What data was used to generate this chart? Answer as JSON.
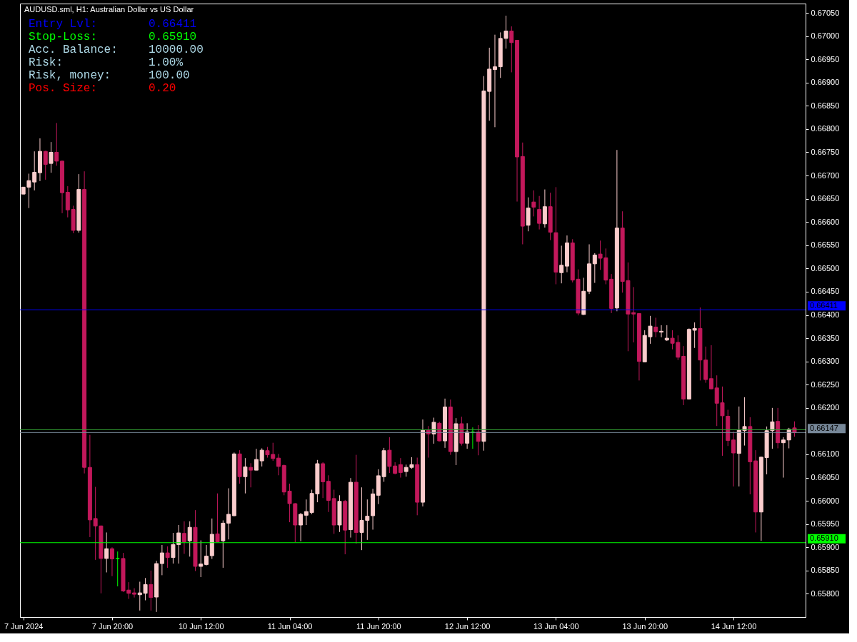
{
  "chart_data": {
    "type": "candlestick",
    "title": "AUDUSD.sml, H1:  Australian Dollar vs US Dollar",
    "categories": [
      "7 Jun 2024",
      null,
      null,
      null,
      null,
      null,
      null,
      null,
      null,
      null,
      null,
      null,
      null,
      null,
      null,
      null,
      "7 Jun 20:00",
      null,
      null,
      null,
      null,
      null,
      null,
      null,
      null,
      null,
      null,
      null,
      null,
      null,
      null,
      null,
      "10 Jun 12:00",
      null,
      null,
      null,
      null,
      null,
      null,
      null,
      null,
      null,
      null,
      null,
      null,
      null,
      null,
      null,
      "11 Jun 04:00",
      null,
      null,
      null,
      null,
      null,
      null,
      null,
      null,
      null,
      null,
      null,
      null,
      null,
      null,
      null,
      "11 Jun 20:00",
      null,
      null,
      null,
      null,
      null,
      null,
      null,
      null,
      null,
      null,
      null,
      null,
      null,
      null,
      null,
      "12 Jun 12:00",
      null,
      null,
      null,
      null,
      null,
      null,
      null,
      null,
      null,
      null,
      null,
      null,
      null,
      null,
      null,
      "13 Jun 04:00",
      null,
      null,
      null,
      null,
      null,
      null,
      null,
      null,
      null,
      null,
      null,
      null,
      null,
      null,
      null,
      "13 Jun 20:00",
      null,
      null,
      null,
      null,
      null,
      null,
      null,
      null,
      null,
      null,
      null,
      null,
      null,
      null,
      null,
      "14 Jun 12:00",
      null,
      null,
      null,
      null,
      null,
      null,
      null,
      null,
      null,
      null,
      null
    ],
    "ohlc": [
      [
        0.6666,
        0.66675,
        0.6666,
        0.66675
      ],
      [
        0.66675,
        0.66704,
        0.6663,
        0.66689
      ],
      [
        0.66686,
        0.66752,
        0.66668,
        0.66707
      ],
      [
        0.66706,
        0.6678,
        0.66688,
        0.66752
      ],
      [
        0.66752,
        0.66753,
        0.66691,
        0.66724
      ],
      [
        0.66726,
        0.66772,
        0.66706,
        0.6675
      ],
      [
        0.6675,
        0.66813,
        0.66721,
        0.66731
      ],
      [
        0.66731,
        0.66732,
        0.66619,
        0.66663
      ],
      [
        0.66664,
        0.66677,
        0.6661,
        0.66626
      ],
      [
        0.66627,
        0.66635,
        0.66576,
        0.66582
      ],
      [
        0.66582,
        0.66703,
        0.66577,
        0.6667
      ],
      [
        0.6667,
        0.66709,
        0.66059,
        0.66072
      ],
      [
        0.66072,
        0.66142,
        0.65922,
        0.65959
      ],
      [
        0.65962,
        0.6603,
        0.65873,
        0.65946
      ],
      [
        0.65946,
        0.65947,
        0.65801,
        0.65876
      ],
      [
        0.65876,
        0.65932,
        0.65846,
        0.65897
      ],
      [
        0.65897,
        0.659,
        0.65838,
        0.65875
      ],
      [
        0.65876,
        0.65891,
        0.65816,
        0.65876
      ],
      [
        0.65876,
        0.65888,
        0.65804,
        0.65806
      ],
      [
        0.65808,
        0.65825,
        0.65789,
        0.65801
      ],
      [
        0.65802,
        0.65812,
        0.65792,
        0.65799
      ],
      [
        0.65798,
        0.65826,
        0.65764,
        0.65802
      ],
      [
        0.65801,
        0.65834,
        0.65786,
        0.6582
      ],
      [
        0.6582,
        0.6585,
        0.65764,
        0.65792
      ],
      [
        0.65793,
        0.65871,
        0.65761,
        0.65865
      ],
      [
        0.65865,
        0.65905,
        0.6584,
        0.65888
      ],
      [
        0.65888,
        0.65902,
        0.65856,
        0.65878
      ],
      [
        0.65878,
        0.65931,
        0.65865,
        0.65906
      ],
      [
        0.65906,
        0.65948,
        0.65865,
        0.65931
      ],
      [
        0.6593,
        0.65956,
        0.65886,
        0.65912
      ],
      [
        0.65914,
        0.65956,
        0.6588,
        0.65943
      ],
      [
        0.65943,
        0.6598,
        0.65849,
        0.65859
      ],
      [
        0.65859,
        0.65915,
        0.65836,
        0.65864
      ],
      [
        0.65863,
        0.65905,
        0.65861,
        0.65881
      ],
      [
        0.65882,
        0.65962,
        0.65875,
        0.65928
      ],
      [
        0.65929,
        0.66016,
        0.65912,
        0.65912
      ],
      [
        0.65914,
        0.65958,
        0.65856,
        0.65952
      ],
      [
        0.65952,
        0.66027,
        0.65917,
        0.65971
      ],
      [
        0.65968,
        0.66104,
        0.65967,
        0.66101
      ],
      [
        0.66101,
        0.66109,
        0.66037,
        0.66052
      ],
      [
        0.66052,
        0.66092,
        0.66016,
        0.66073
      ],
      [
        0.66072,
        0.66081,
        0.66029,
        0.66066
      ],
      [
        0.66066,
        0.66112,
        0.66066,
        0.66089
      ],
      [
        0.66086,
        0.66113,
        0.66074,
        0.66109
      ],
      [
        0.66108,
        0.66116,
        0.66093,
        0.66099
      ],
      [
        0.661,
        0.66125,
        0.66086,
        0.66091
      ],
      [
        0.66092,
        0.66101,
        0.66055,
        0.66074
      ],
      [
        0.66076,
        0.66078,
        0.66012,
        0.66019
      ],
      [
        0.66021,
        0.66037,
        0.65954,
        0.65994
      ],
      [
        0.65994,
        0.65995,
        0.65911,
        0.65948
      ],
      [
        0.65948,
        0.65974,
        0.65913,
        0.65971
      ],
      [
        0.65969,
        0.66003,
        0.65948,
        0.65977
      ],
      [
        0.65975,
        0.66024,
        0.65971,
        0.66016
      ],
      [
        0.66015,
        0.66088,
        0.65997,
        0.6608
      ],
      [
        0.6608,
        0.66083,
        0.66006,
        0.66041
      ],
      [
        0.66042,
        0.66055,
        0.65976,
        0.66001
      ],
      [
        0.66005,
        0.66024,
        0.65929,
        0.65948
      ],
      [
        0.65948,
        0.66012,
        0.65933,
        0.65999
      ],
      [
        0.65999,
        0.66002,
        0.65885,
        0.65937
      ],
      [
        0.65938,
        0.66049,
        0.65921,
        0.6604
      ],
      [
        0.6604,
        0.66099,
        0.65908,
        0.65932
      ],
      [
        0.65932,
        0.66029,
        0.65894,
        0.65958
      ],
      [
        0.65958,
        0.66003,
        0.65916,
        0.65967
      ],
      [
        0.65968,
        0.66026,
        0.65938,
        0.66015
      ],
      [
        0.66012,
        0.66068,
        0.65993,
        0.66054
      ],
      [
        0.66052,
        0.66114,
        0.66041,
        0.66108
      ],
      [
        0.66109,
        0.66137,
        0.6606,
        0.66074
      ],
      [
        0.66075,
        0.66083,
        0.66057,
        0.66059
      ],
      [
        0.66078,
        0.66092,
        0.6605,
        0.66061
      ],
      [
        0.66063,
        0.66078,
        0.66052,
        0.66072
      ],
      [
        0.66072,
        0.66094,
        0.66069,
        0.66078
      ],
      [
        0.66078,
        0.66093,
        0.65969,
        0.65997
      ],
      [
        0.65997,
        0.66175,
        0.65988,
        0.66152
      ],
      [
        0.66152,
        0.66161,
        0.66093,
        0.66144
      ],
      [
        0.66144,
        0.66179,
        0.66123,
        0.66169
      ],
      [
        0.66167,
        0.6617,
        0.66128,
        0.66129
      ],
      [
        0.66129,
        0.6622,
        0.66114,
        0.66202
      ],
      [
        0.66202,
        0.66218,
        0.66099,
        0.66106
      ],
      [
        0.66106,
        0.66178,
        0.66077,
        0.66166
      ],
      [
        0.66166,
        0.66181,
        0.66119,
        0.66124
      ],
      [
        0.66124,
        0.66167,
        0.66112,
        0.66148
      ],
      [
        0.66148,
        0.66158,
        0.66112,
        0.66148
      ],
      [
        0.66148,
        0.66163,
        0.66098,
        0.66128
      ],
      [
        0.66128,
        0.66914,
        0.66108,
        0.66882
      ],
      [
        0.66881,
        0.66975,
        0.66818,
        0.66929
      ],
      [
        0.66928,
        0.67003,
        0.66804,
        0.66934
      ],
      [
        0.66934,
        0.67008,
        0.6691,
        0.66995
      ],
      [
        0.66995,
        0.67044,
        0.66973,
        0.67011
      ],
      [
        0.67011,
        0.67021,
        0.66922,
        0.66986
      ],
      [
        0.66991,
        0.66991,
        0.66644,
        0.6674
      ],
      [
        0.66741,
        0.66771,
        0.66552,
        0.66591
      ],
      [
        0.66593,
        0.66653,
        0.6658,
        0.6663
      ],
      [
        0.66643,
        0.66668,
        0.66612,
        0.66632
      ],
      [
        0.66627,
        0.66656,
        0.66584,
        0.66597
      ],
      [
        0.66596,
        0.6667,
        0.66588,
        0.66633
      ],
      [
        0.66633,
        0.66663,
        0.66561,
        0.66578
      ],
      [
        0.66577,
        0.66675,
        0.66466,
        0.66492
      ],
      [
        0.66491,
        0.66549,
        0.66468,
        0.66507
      ],
      [
        0.66505,
        0.66571,
        0.66492,
        0.66555
      ],
      [
        0.66555,
        0.66563,
        0.6647,
        0.66475
      ],
      [
        0.66477,
        0.66498,
        0.66399,
        0.66404
      ],
      [
        0.66401,
        0.6648,
        0.664,
        0.66451
      ],
      [
        0.66451,
        0.66552,
        0.66445,
        0.6651
      ],
      [
        0.6651,
        0.66533,
        0.66469,
        0.66529
      ],
      [
        0.66531,
        0.6656,
        0.66497,
        0.66522
      ],
      [
        0.66523,
        0.66543,
        0.66466,
        0.66475
      ],
      [
        0.66477,
        0.66488,
        0.66404,
        0.66414
      ],
      [
        0.66415,
        0.66755,
        0.66408,
        0.66587
      ],
      [
        0.66587,
        0.66623,
        0.66448,
        0.66472
      ],
      [
        0.66474,
        0.66513,
        0.66322,
        0.66402
      ],
      [
        0.66405,
        0.6646,
        0.66341,
        0.66402
      ],
      [
        0.66403,
        0.66403,
        0.66259,
        0.663
      ],
      [
        0.66299,
        0.66367,
        0.66299,
        0.66356
      ],
      [
        0.66353,
        0.66398,
        0.66338,
        0.66376
      ],
      [
        0.66374,
        0.66394,
        0.66352,
        0.66364
      ],
      [
        0.66363,
        0.66378,
        0.66352,
        0.66365
      ],
      [
        0.66346,
        0.66378,
        0.66344,
        0.6635
      ],
      [
        0.6635,
        0.66367,
        0.66326,
        0.66339
      ],
      [
        0.66341,
        0.66356,
        0.66303,
        0.66309
      ],
      [
        0.66311,
        0.66333,
        0.66206,
        0.66219
      ],
      [
        0.66219,
        0.66371,
        0.66218,
        0.66369
      ],
      [
        0.66367,
        0.66384,
        0.66329,
        0.66371
      ],
      [
        0.66371,
        0.66416,
        0.66259,
        0.66303
      ],
      [
        0.66303,
        0.66332,
        0.66254,
        0.66261
      ],
      [
        0.66263,
        0.66335,
        0.6624,
        0.66241
      ],
      [
        0.66243,
        0.6627,
        0.66161,
        0.6621
      ],
      [
        0.66211,
        0.66246,
        0.66097,
        0.66183
      ],
      [
        0.66182,
        0.66196,
        0.66118,
        0.6613
      ],
      [
        0.66131,
        0.66149,
        0.66031,
        0.66103
      ],
      [
        0.66102,
        0.66203,
        0.66031,
        0.66153
      ],
      [
        0.66151,
        0.66223,
        0.66119,
        0.6616
      ],
      [
        0.6616,
        0.6618,
        0.66014,
        0.66084
      ],
      [
        0.66086,
        0.66109,
        0.65932,
        0.65976
      ],
      [
        0.65976,
        0.66095,
        0.65914,
        0.66094
      ],
      [
        0.66093,
        0.6616,
        0.66057,
        0.66151
      ],
      [
        0.66151,
        0.662,
        0.66112,
        0.6617
      ],
      [
        0.66171,
        0.662,
        0.66113,
        0.66125
      ],
      [
        0.66125,
        0.66137,
        0.6605,
        0.66131
      ],
      [
        0.66131,
        0.66157,
        0.66113,
        0.66154
      ],
      [
        0.66157,
        0.66171,
        0.66138,
        0.66147
      ]
    ],
    "colors": [
      "#facdcd",
      "#facdcd",
      "#facdcd",
      "#facdcd",
      "#c2185b",
      "#facdcd",
      "#c2185b",
      "#c2185b",
      "#c2185b",
      "#c2185b",
      "#facdcd",
      "#c2185b",
      "#c2185b",
      "#c2185b",
      "#c2185b",
      "#facdcd",
      "#c2185b",
      "#00ff00",
      "#c2185b",
      "#c2185b",
      "#c2185b",
      "#facdcd",
      "#facdcd",
      "#c2185b",
      "#facdcd",
      "#facdcd",
      "#c2185b",
      "#facdcd",
      "#facdcd",
      "#c2185b",
      "#facdcd",
      "#c2185b",
      "#facdcd",
      "#facdcd",
      "#facdcd",
      "#c2185b",
      "#facdcd",
      "#facdcd",
      "#facdcd",
      "#c2185b",
      "#facdcd",
      "#c2185b",
      "#facdcd",
      "#facdcd",
      "#c2185b",
      "#c2185b",
      "#c2185b",
      "#c2185b",
      "#c2185b",
      "#c2185b",
      "#facdcd",
      "#facdcd",
      "#facdcd",
      "#facdcd",
      "#c2185b",
      "#c2185b",
      "#c2185b",
      "#facdcd",
      "#c2185b",
      "#facdcd",
      "#c2185b",
      "#facdcd",
      "#facdcd",
      "#facdcd",
      "#facdcd",
      "#facdcd",
      "#c2185b",
      "#c2185b",
      "#c2185b",
      "#facdcd",
      "#facdcd",
      "#c2185b",
      "#facdcd",
      "#c2185b",
      "#facdcd",
      "#c2185b",
      "#facdcd",
      "#c2185b",
      "#facdcd",
      "#c2185b",
      "#facdcd",
      "#00ff00",
      "#c2185b",
      "#facdcd",
      "#facdcd",
      "#facdcd",
      "#facdcd",
      "#facdcd",
      "#c2185b",
      "#c2185b",
      "#c2185b",
      "#facdcd",
      "#c2185b",
      "#c2185b",
      "#facdcd",
      "#c2185b",
      "#c2185b",
      "#facdcd",
      "#facdcd",
      "#c2185b",
      "#c2185b",
      "#facdcd",
      "#facdcd",
      "#facdcd",
      "#c2185b",
      "#c2185b",
      "#c2185b",
      "#facdcd",
      "#c2185b",
      "#c2185b",
      "#c2185b",
      "#c2185b",
      "#facdcd",
      "#facdcd",
      "#c2185b",
      "#facdcd",
      "#facdcd",
      "#c2185b",
      "#c2185b",
      "#c2185b",
      "#facdcd",
      "#facdcd",
      "#c2185b",
      "#c2185b",
      "#c2185b",
      "#c2185b",
      "#c2185b",
      "#c2185b",
      "#c2185b",
      "#facdcd",
      "#facdcd",
      "#c2185b",
      "#c2185b",
      "#facdcd",
      "#facdcd",
      "#facdcd",
      "#c2185b",
      "#facdcd",
      "#facdcd",
      "#c2185b"
    ],
    "ylim": [
      0.6575,
      0.6707
    ],
    "yticks": [
      {
        "value": 0.6705,
        "label": "0.67050"
      },
      {
        "value": 0.67,
        "label": "0.67000"
      },
      {
        "value": 0.6695,
        "label": "0.66950"
      },
      {
        "value": 0.669,
        "label": "0.66900"
      },
      {
        "value": 0.6685,
        "label": "0.66850"
      },
      {
        "value": 0.668,
        "label": "0.66800"
      },
      {
        "value": 0.6675,
        "label": "0.66750"
      },
      {
        "value": 0.667,
        "label": "0.66700"
      },
      {
        "value": 0.6665,
        "label": "0.66650"
      },
      {
        "value": 0.666,
        "label": "0.66600"
      },
      {
        "value": 0.6655,
        "label": "0.66550"
      },
      {
        "value": 0.665,
        "label": "0.66500"
      },
      {
        "value": 0.6645,
        "label": "0.66450"
      },
      {
        "value": 0.664,
        "label": "0.66400"
      },
      {
        "value": 0.6635,
        "label": "0.66350"
      },
      {
        "value": 0.663,
        "label": "0.66300"
      },
      {
        "value": 0.6625,
        "label": "0.66250"
      },
      {
        "value": 0.662,
        "label": "0.66200"
      },
      {
        "value": 0.661,
        "label": "0.66100"
      },
      {
        "value": 0.6605,
        "label": "0.66050"
      },
      {
        "value": 0.66,
        "label": "0.66000"
      },
      {
        "value": 0.6595,
        "label": "0.65950"
      },
      {
        "value": 0.659,
        "label": "0.65900"
      },
      {
        "value": 0.6585,
        "label": "0.65850"
      },
      {
        "value": 0.658,
        "label": "0.65800"
      }
    ],
    "ref_lines": [
      {
        "axis": "y",
        "value": 0.66411,
        "label": "0.66411",
        "color": "#0000ff"
      },
      {
        "axis": "y",
        "value": 0.6591,
        "label": "0.65910",
        "color": "#00ff00"
      },
      {
        "axis": "y",
        "value": 0.66153,
        "color": "#32a032"
      },
      {
        "axis": "y",
        "value": 0.66147,
        "label": "0.66147",
        "color": "#778899"
      }
    ],
    "annotations": [
      "Entry Lvl:",
      "0.66411",
      "Stop-Loss:",
      "0.65910",
      "Acc. Balance:",
      "10000.00",
      "Risk:",
      "1.00%",
      "Risk, money:",
      "100.00",
      "Pos. Size:",
      "0.20"
    ]
  }
}
